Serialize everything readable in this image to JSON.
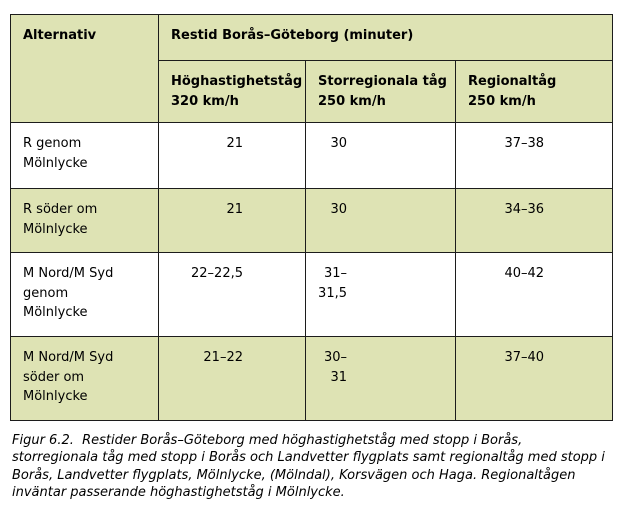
{
  "table": {
    "header": {
      "col_alternative": "Alternativ",
      "title": "Restid Borås–Göteborg (minuter)",
      "columns": [
        {
          "label": "Höghastighetståg\n320 km/h"
        },
        {
          "label": "Storregionala tåg\n250 km/h"
        },
        {
          "label": "Regionaltåg\n250 km/h"
        }
      ]
    },
    "rows": [
      {
        "alternative": "R genom\nMölnlycke",
        "hst": "21",
        "storregional": "30",
        "regional": "37–38"
      },
      {
        "alternative": "R söder om\nMölnlycke",
        "hst": "21",
        "storregional": "30",
        "regional": "34–36"
      },
      {
        "alternative": "M Nord/M Syd\ngenom\nMölnlycke",
        "hst": "22–22,5",
        "storregional": "31–31,5",
        "regional": "40–42"
      },
      {
        "alternative": "M Nord/M Syd\nsöder om\nMölnlycke",
        "hst": "21–22",
        "storregional": "30–31",
        "regional": "37–40"
      }
    ]
  },
  "caption": "Figur 6.2.  Restider Borås–Göteborg med höghastighetståg med stopp i Borås, storregionala tåg med stopp i Borås och Landvetter flygplats samt regionaltåg med stopp i Borås, Landvetter flygplats, Mölnlycke, (Mölndal), Korsvägen och Haga. Regionaltågen inväntar passerande höghastighetståg i Mölnlycke.",
  "colors": {
    "header_bg": "#dee3b4",
    "row_alt_bg": "#dee3b4",
    "border": "#1c1c1c"
  }
}
